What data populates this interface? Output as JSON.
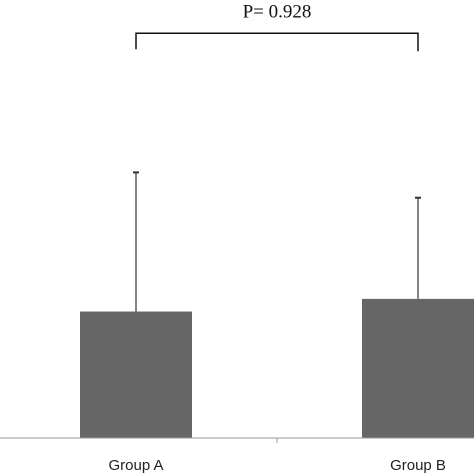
{
  "chart_data": {
    "type": "bar",
    "categories": [
      "Group A",
      "Group B"
    ],
    "values": [
      1.0,
      1.1
    ],
    "error_upper": [
      2.1,
      1.9
    ],
    "ylim": [
      0,
      3.4
    ],
    "grid": false,
    "annotation": {
      "text": "P= 0.928",
      "connects": [
        "Group A",
        "Group B"
      ],
      "level": 3.2
    },
    "colors": {
      "bar": "#666666",
      "axis": "#999999",
      "error": "#333333",
      "bracket": "#111111"
    }
  }
}
